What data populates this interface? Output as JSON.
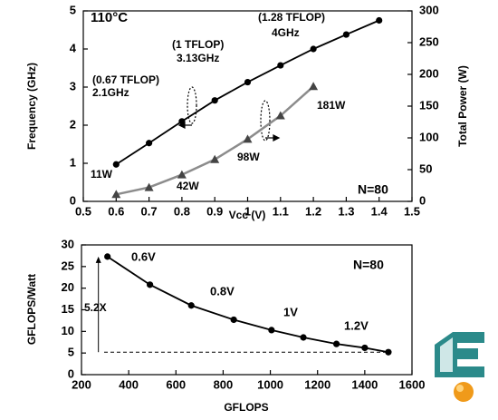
{
  "chart_data": [
    {
      "type": "line",
      "x_label": "Vcc (V)",
      "y_label": "Frequency (GHz)",
      "y2_label": "Total Power (W)",
      "x": [
        0.6,
        0.7,
        0.8,
        0.9,
        1,
        1.1,
        1.2,
        1.3,
        1.4
      ],
      "series": [
        {
          "name": "Frequency",
          "color": "#000000",
          "marker": "circle",
          "values": [
            0.97,
            1.53,
            2.1,
            2.65,
            3.13,
            3.57,
            4.0,
            4.38,
            4.75
          ]
        },
        {
          "name": "Total Power",
          "color": "#8c8c8c",
          "marker": "triangle",
          "axis": "y2",
          "values": [
            11,
            22,
            42,
            66,
            98,
            135,
            181,
            null,
            null
          ]
        }
      ],
      "xlim": [
        0.5,
        1.5
      ],
      "xticks": [
        0.5,
        0.6,
        0.7,
        0.8,
        0.9,
        1,
        1.1,
        1.2,
        1.3,
        1.4,
        1.5
      ],
      "ylim": [
        0,
        5
      ],
      "yticks": [
        0,
        1,
        2,
        3,
        4,
        5
      ],
      "y2lim": [
        0,
        300
      ],
      "y2ticks": [
        0,
        50,
        100,
        150,
        200,
        250,
        300
      ],
      "annotations": [
        "110°C",
        "N=80",
        "(0.67 TFLOP)",
        "2.1GHz",
        "(1 TFLOP)",
        "3.13GHz",
        "(1.28 TFLOP)",
        "4GHz",
        "11W",
        "42W",
        "98W",
        "181W"
      ]
    },
    {
      "type": "line",
      "x_label": "GFLOPS",
      "y_label": "GFLOPS/Watt",
      "x": [
        310,
        490,
        665,
        845,
        1005,
        1140,
        1280,
        1400,
        1500
      ],
      "series": [
        {
          "name": "GFLOPS/Watt",
          "color": "#000000",
          "marker": "circle",
          "values": [
            27.3,
            20.8,
            16,
            12.7,
            10.3,
            8.6,
            7.1,
            6.2,
            5.2
          ]
        }
      ],
      "xlim": [
        200,
        1600
      ],
      "xticks": [
        200,
        400,
        600,
        800,
        1000,
        1200,
        1400,
        1600
      ],
      "ylim": [
        0,
        30
      ],
      "yticks": [
        0,
        5,
        10,
        15,
        20,
        25,
        30
      ],
      "annotations": [
        "0.6V",
        "0.8V",
        "1V",
        "1.2V",
        "5.2X",
        "N=80"
      ]
    }
  ]
}
